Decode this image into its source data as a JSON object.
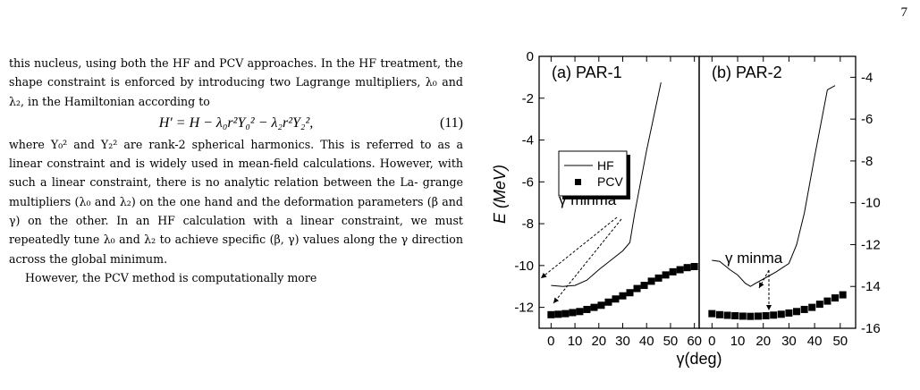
{
  "page_number": "7",
  "body": {
    "para1_lines": [
      "this nucleus, using both the HF and PCV approaches.",
      "In the HF treatment, the shape constraint is enforced by",
      "introducing two Lagrange multipliers, λ₀ and λ₂, in the",
      "Hamiltonian according to"
    ],
    "equation": "H′ = H − λ₀r²Y₀² − λ₂r²Y₂²,",
    "equation_number": "(11)",
    "para2_lines": [
      "where Y₀² and Y₂² are rank-2 spherical harmonics. This",
      "is referred to as a linear constraint and is widely used",
      "in mean-field calculations. However, with such a linear",
      "constraint, there is no analytic relation between the La-",
      "grange multipliers (λ₀ and λ₂) on the one hand and the",
      "deformation parameters (β and γ) on the other. In an HF",
      "calculation with a linear constraint, we must repeatedly",
      "tune λ₀ and λ₂ to achieve specific (β, γ) values along the",
      "γ direction across the global minimum."
    ],
    "para3_lines": [
      "However, the PCV method is computationally more"
    ]
  },
  "figure": {
    "ylabel": "E (MeV)",
    "xlabel": "γ(deg)",
    "legend": {
      "hf": "HF",
      "pcv": "PCV"
    },
    "colors": {
      "line": "#000000",
      "marker": "#000000"
    }
  },
  "chart_data": [
    {
      "type": "line",
      "title": "(a) PAR-1",
      "xlim": [
        -5,
        62
      ],
      "ylim": [
        -13,
        0
      ],
      "xticks": [
        0,
        10,
        20,
        30,
        40,
        50,
        60
      ],
      "yticks": [
        0,
        -2,
        -4,
        -6,
        -8,
        -10,
        -12
      ],
      "annotation": "γ minma",
      "series": [
        {
          "name": "HF",
          "style": "line",
          "x": [
            0,
            5,
            10,
            15,
            20,
            25,
            30,
            33,
            35,
            40,
            46
          ],
          "y": [
            -10.95,
            -11.0,
            -10.95,
            -10.7,
            -10.2,
            -9.75,
            -9.3,
            -8.9,
            -7.5,
            -4.5,
            -1.25
          ]
        },
        {
          "name": "PCV",
          "style": "square",
          "x": [
            0,
            3,
            6,
            9,
            12,
            15,
            18,
            21,
            24,
            27,
            30,
            33,
            36,
            39,
            42,
            45,
            48,
            51,
            54,
            57,
            60
          ],
          "y": [
            -12.35,
            -12.33,
            -12.3,
            -12.25,
            -12.2,
            -12.1,
            -12.0,
            -11.9,
            -11.75,
            -11.6,
            -11.45,
            -11.3,
            -11.1,
            -10.95,
            -10.75,
            -10.6,
            -10.45,
            -10.3,
            -10.2,
            -10.1,
            -10.05
          ]
        }
      ]
    },
    {
      "type": "line",
      "title": "(b) PAR-2",
      "xlim": [
        -5,
        56
      ],
      "ylim": [
        -16,
        -3
      ],
      "xticks": [
        0,
        10,
        20,
        30,
        40,
        50
      ],
      "yticks": [
        -4,
        -6,
        -8,
        -10,
        -12,
        -14,
        -16
      ],
      "annotation": "γ minma",
      "series": [
        {
          "name": "HF",
          "style": "line",
          "x": [
            0,
            3,
            7,
            10,
            13,
            15,
            17,
            20,
            25,
            30,
            33,
            36,
            40,
            45,
            48
          ],
          "y": [
            -12.75,
            -12.8,
            -13.2,
            -13.45,
            -13.85,
            -14.0,
            -13.85,
            -13.65,
            -13.3,
            -12.9,
            -12.0,
            -10.5,
            -7.8,
            -4.6,
            -4.4
          ]
        },
        {
          "name": "PCV",
          "style": "square",
          "x": [
            0,
            3,
            6,
            9,
            12,
            15,
            18,
            21,
            24,
            27,
            30,
            33,
            36,
            39,
            42,
            45,
            48,
            51
          ],
          "y": [
            -15.3,
            -15.35,
            -15.38,
            -15.4,
            -15.42,
            -15.43,
            -15.42,
            -15.4,
            -15.37,
            -15.33,
            -15.27,
            -15.2,
            -15.1,
            -15.0,
            -14.85,
            -14.7,
            -14.55,
            -14.4
          ]
        }
      ]
    }
  ]
}
